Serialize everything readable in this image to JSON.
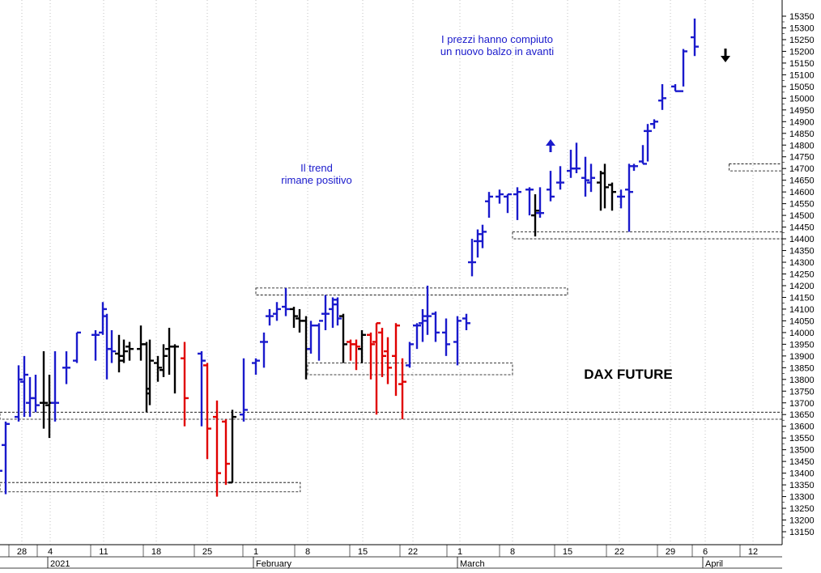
{
  "chart_data": {
    "type": "ohlc",
    "title": "DAX FUTURE",
    "y_unit": "index points",
    "ylim": [
      13100,
      15375
    ],
    "y_ticks": [
      13150,
      13200,
      13250,
      13300,
      13350,
      13400,
      13450,
      13500,
      13550,
      13600,
      13650,
      13700,
      13750,
      13800,
      13850,
      13900,
      13950,
      14000,
      14050,
      14100,
      14150,
      14200,
      14250,
      14300,
      14350,
      14400,
      14450,
      14500,
      14550,
      14600,
      14650,
      14700,
      14750,
      14800,
      14850,
      14900,
      14950,
      15000,
      15050,
      15100,
      15150,
      15200,
      15250,
      15300,
      15350
    ],
    "x_ticks": [
      {
        "label": "28",
        "date": "2020-12-28"
      },
      {
        "label": "4",
        "date": "2021-01-04"
      },
      {
        "label": "11",
        "date": "2021-01-11"
      },
      {
        "label": "18",
        "date": "2021-01-18"
      },
      {
        "label": "25",
        "date": "2021-01-25"
      },
      {
        "label": "1",
        "date": "2021-02-01"
      },
      {
        "label": "8",
        "date": "2021-02-08"
      },
      {
        "label": "15",
        "date": "2021-02-15"
      },
      {
        "label": "22",
        "date": "2021-02-22"
      },
      {
        "label": "1",
        "date": "2021-03-01"
      },
      {
        "label": "8",
        "date": "2021-03-08"
      },
      {
        "label": "15",
        "date": "2021-03-15"
      },
      {
        "label": "22",
        "date": "2021-03-22"
      },
      {
        "label": "29",
        "date": "2021-03-29"
      },
      {
        "label": "6",
        "date": "2021-04-06"
      },
      {
        "label": "12",
        "date": "2021-04-12"
      }
    ],
    "month_labels": [
      {
        "label": "2021",
        "date": "2021-01-04"
      },
      {
        "label": "February",
        "date": "2021-02-01"
      },
      {
        "label": "March",
        "date": "2021-03-01"
      },
      {
        "label": "April",
        "date": "2021-04-06"
      }
    ],
    "colors": {
      "up": "#1a1acc",
      "down": "#e00000",
      "neutral": "#000000"
    },
    "bars": [
      {
        "date": "2020-12-21",
        "open": 13400,
        "high": 13440,
        "low": 13340,
        "close": 13410,
        "color": "up"
      },
      {
        "date": "2020-12-22",
        "open": 13520,
        "high": 13620,
        "low": 13310,
        "close": 13610,
        "color": "up"
      },
      {
        "date": "2020-12-28",
        "open": 13640,
        "high": 13860,
        "low": 13620,
        "close": 13800,
        "color": "up"
      },
      {
        "date": "2020-12-29",
        "open": 13790,
        "high": 13900,
        "low": 13640,
        "close": 13820,
        "color": "up"
      },
      {
        "date": "2020-12-30",
        "open": 13700,
        "high": 13810,
        "low": 13640,
        "close": 13720,
        "color": "up"
      },
      {
        "date": "2020-12-31",
        "open": 13720,
        "high": 13820,
        "low": 13660,
        "close": 13690,
        "color": "up"
      },
      {
        "date": "2021-01-04",
        "open": 13700,
        "high": 13920,
        "low": 13590,
        "close": 13700,
        "color": "neutral"
      },
      {
        "date": "2021-01-05",
        "open": 13690,
        "high": 13820,
        "low": 13550,
        "close": 13700,
        "color": "neutral"
      },
      {
        "date": "2021-01-06",
        "open": 13700,
        "high": 13920,
        "low": 13620,
        "close": 13700,
        "color": "up"
      },
      {
        "date": "2021-01-07",
        "open": 13850,
        "high": 13920,
        "low": 13780,
        "close": 13850,
        "color": "up"
      },
      {
        "date": "2021-01-08",
        "open": 13880,
        "high": 14000,
        "low": 13870,
        "close": 14000,
        "color": "up"
      },
      {
        "date": "2021-01-11",
        "open": 13990,
        "high": 14010,
        "low": 13880,
        "close": 13990,
        "color": "up"
      },
      {
        "date": "2021-01-12",
        "open": 14000,
        "high": 14130,
        "low": 13990,
        "close": 14100,
        "color": "up"
      },
      {
        "date": "2021-01-13",
        "open": 14070,
        "high": 14080,
        "low": 13800,
        "close": 13930,
        "color": "up"
      },
      {
        "date": "2021-01-14",
        "open": 13930,
        "high": 14010,
        "low": 13870,
        "close": 13920,
        "color": "up"
      },
      {
        "date": "2021-01-15",
        "open": 13910,
        "high": 13990,
        "low": 13830,
        "close": 13900,
        "color": "neutral"
      },
      {
        "date": "2021-01-18",
        "open": 13880,
        "high": 13970,
        "low": 13870,
        "close": 13920,
        "color": "neutral"
      },
      {
        "date": "2021-01-19",
        "open": 13940,
        "high": 13960,
        "low": 13880,
        "close": 13930,
        "color": "neutral"
      },
      {
        "date": "2021-01-20",
        "open": 13930,
        "high": 14030,
        "low": 13880,
        "close": 13950,
        "color": "neutral"
      },
      {
        "date": "2021-01-21",
        "open": 13950,
        "high": 13960,
        "low": 13660,
        "close": 13740,
        "color": "neutral"
      },
      {
        "date": "2021-01-22",
        "open": 13760,
        "high": 13970,
        "low": 13690,
        "close": 13880,
        "color": "neutral"
      },
      {
        "date": "2021-01-25",
        "open": 13870,
        "high": 13900,
        "low": 13790,
        "close": 13850,
        "color": "neutral"
      },
      {
        "date": "2021-01-26",
        "open": 13840,
        "high": 13950,
        "low": 13810,
        "close": 13900,
        "color": "neutral"
      },
      {
        "date": "2021-01-27",
        "open": 13930,
        "high": 14020,
        "low": 13820,
        "close": 13940,
        "color": "neutral"
      },
      {
        "date": "2021-01-28",
        "open": 13940,
        "high": 13950,
        "low": 13740,
        "close": 13940,
        "color": "neutral"
      },
      {
        "date": "2021-01-29",
        "open": 13890,
        "high": 13960,
        "low": 13600,
        "close": 13720,
        "color": "down"
      },
      {
        "date": "2021-02-01",
        "open": 13910,
        "high": 13920,
        "low": 13600,
        "close": 13880,
        "color": "up"
      },
      {
        "date": "2021-02-02",
        "open": 13860,
        "high": 13870,
        "low": 13460,
        "close": 13590,
        "color": "down"
      },
      {
        "date": "2021-02-03",
        "open": 13640,
        "high": 13710,
        "low": 13300,
        "close": 13400,
        "color": "down"
      },
      {
        "date": "2021-02-04",
        "open": 13620,
        "high": 13630,
        "low": 13350,
        "close": 13440,
        "color": "down"
      },
      {
        "date": "2021-02-05",
        "open": 13360,
        "high": 13670,
        "low": 13360,
        "close": 13640,
        "color": "neutral"
      },
      {
        "date": "2021-02-08",
        "open": 13650,
        "high": 13890,
        "low": 13620,
        "close": 13670,
        "color": "up"
      },
      {
        "date": "2021-02-09",
        "open": 13870,
        "high": 13890,
        "low": 13820,
        "close": 13880,
        "color": "up"
      },
      {
        "date": "2021-02-10",
        "open": 13960,
        "high": 14000,
        "low": 13850,
        "close": 13960,
        "color": "up"
      },
      {
        "date": "2021-02-11",
        "open": 14070,
        "high": 14100,
        "low": 14030,
        "close": 14070,
        "color": "up"
      },
      {
        "date": "2021-02-12",
        "open": 14080,
        "high": 14130,
        "low": 14050,
        "close": 14100,
        "color": "up"
      },
      {
        "date": "2021-02-15",
        "open": 14110,
        "high": 14190,
        "low": 14070,
        "close": 14100,
        "color": "up"
      },
      {
        "date": "2021-02-16",
        "open": 14100,
        "high": 14110,
        "low": 14020,
        "close": 14070,
        "color": "neutral"
      },
      {
        "date": "2021-02-17",
        "open": 14060,
        "high": 14100,
        "low": 14000,
        "close": 14050,
        "color": "neutral"
      },
      {
        "date": "2021-02-18",
        "open": 14050,
        "high": 14070,
        "low": 13800,
        "close": 13930,
        "color": "neutral"
      },
      {
        "date": "2021-02-19",
        "open": 13930,
        "high": 14050,
        "low": 13910,
        "close": 14030,
        "color": "up"
      },
      {
        "date": "2021-02-22",
        "open": 14030,
        "high": 14040,
        "low": 13880,
        "close": 14050,
        "color": "up"
      },
      {
        "date": "2021-02-23",
        "open": 14080,
        "high": 14160,
        "low": 14010,
        "close": 14080,
        "color": "up"
      },
      {
        "date": "2021-02-24",
        "open": 14100,
        "high": 14150,
        "low": 14020,
        "close": 14120,
        "color": "up"
      },
      {
        "date": "2021-02-25",
        "open": 14140,
        "high": 14150,
        "low": 14030,
        "close": 14060,
        "color": "up"
      },
      {
        "date": "2021-02-26",
        "open": 14070,
        "high": 14080,
        "low": 13870,
        "close": 13950,
        "color": "neutral"
      },
      {
        "date": "2021-03-01",
        "open": 13960,
        "high": 13970,
        "low": 13880,
        "close": 13950,
        "color": "down"
      },
      {
        "date": "2021-03-02",
        "open": 13950,
        "high": 13970,
        "low": 13840,
        "close": 13940,
        "color": "down"
      },
      {
        "date": "2021-03-03",
        "open": 13930,
        "high": 14010,
        "low": 13870,
        "close": 13990,
        "color": "neutral"
      },
      {
        "date": "2021-03-04",
        "open": 13990,
        "high": 14000,
        "low": 13800,
        "close": 13950,
        "color": "down"
      },
      {
        "date": "2021-03-05",
        "open": 13960,
        "high": 14040,
        "low": 13650,
        "close": 14040,
        "color": "down"
      },
      {
        "date": "2021-03-08",
        "open": 14000,
        "high": 14020,
        "low": 13810,
        "close": 13900,
        "color": "down"
      },
      {
        "date": "2021-03-09",
        "open": 13920,
        "high": 13980,
        "low": 13780,
        "close": 13850,
        "color": "down"
      },
      {
        "date": "2021-03-10",
        "open": 13900,
        "high": 14040,
        "low": 13730,
        "close": 14030,
        "color": "down"
      },
      {
        "date": "2021-03-11",
        "open": 13780,
        "high": 13890,
        "low": 13630,
        "close": 13790,
        "color": "down"
      },
      {
        "date": "2021-03-12",
        "open": 13860,
        "high": 13960,
        "low": 13850,
        "close": 13950,
        "color": "up"
      },
      {
        "date": "2021-03-15",
        "open": 14030,
        "high": 14040,
        "low": 13930,
        "close": 14030,
        "color": "up"
      },
      {
        "date": "2021-03-16",
        "open": 14040,
        "high": 14100,
        "low": 13960,
        "close": 14050,
        "color": "up"
      },
      {
        "date": "2021-03-17",
        "open": 14070,
        "high": 14200,
        "low": 13990,
        "close": 14070,
        "color": "up"
      },
      {
        "date": "2021-03-18",
        "open": 14080,
        "high": 14090,
        "low": 13960,
        "close": 14000,
        "color": "up"
      },
      {
        "date": "2021-03-19",
        "open": 14000,
        "high": 14060,
        "low": 13900,
        "close": 13950,
        "color": "up"
      },
      {
        "date": "2021-03-22",
        "open": 13960,
        "high": 14070,
        "low": 13860,
        "close": 14050,
        "color": "up"
      },
      {
        "date": "2021-03-23",
        "open": 14060,
        "high": 14080,
        "low": 14010,
        "close": 14040,
        "color": "up"
      },
      {
        "date": "2021-03-24",
        "open": 14300,
        "high": 14400,
        "low": 14240,
        "close": 14300,
        "color": "up"
      },
      {
        "date": "2021-03-25",
        "open": 14390,
        "high": 14440,
        "low": 14320,
        "close": 14390,
        "color": "up"
      },
      {
        "date": "2021-03-26",
        "open": 14420,
        "high": 14460,
        "low": 14360,
        "close": 14430,
        "color": "up"
      },
      {
        "date": "2021-03-29",
        "open": 14560,
        "high": 14600,
        "low": 14490,
        "close": 14580,
        "color": "up"
      },
      {
        "date": "2021-03-30",
        "open": 14580,
        "high": 14610,
        "low": 14550,
        "close": 14590,
        "color": "up"
      },
      {
        "date": "2021-03-31",
        "open": 14580,
        "high": 14590,
        "low": 14510,
        "close": 14590,
        "color": "up"
      },
      {
        "date": "2021-04-01",
        "open": 14590,
        "high": 14620,
        "low": 14480,
        "close": 14600,
        "color": "up"
      },
      {
        "date": "2021-04-02",
        "open": 14610,
        "high": 14620,
        "low": 14500,
        "close": 14610,
        "color": "up"
      },
      {
        "date": "2021-04-05",
        "open": 14500,
        "high": 14590,
        "low": 14410,
        "close": 14520,
        "color": "neutral"
      },
      {
        "date": "2021-04-06",
        "open": 14510,
        "high": 14620,
        "low": 14490,
        "close": 14510,
        "color": "up"
      },
      {
        "date": "2021-04-07",
        "open": 14610,
        "high": 14690,
        "low": 14560,
        "close": 14580,
        "color": "up"
      },
      {
        "date": "2021-04-08",
        "open": 14640,
        "high": 14710,
        "low": 14610,
        "close": 14640,
        "color": "up"
      },
      {
        "date": "2021-04-09",
        "open": 14690,
        "high": 14780,
        "low": 14660,
        "close": 14700,
        "color": "up"
      },
      {
        "date": "2021-04-12",
        "open": 14700,
        "high": 14810,
        "low": 14680,
        "close": 14700,
        "color": "up"
      },
      {
        "date": "2021-04-13",
        "open": 14660,
        "high": 14750,
        "low": 14580,
        "close": 14650,
        "color": "up"
      },
      {
        "date": "2021-04-14",
        "open": 14640,
        "high": 14720,
        "low": 14600,
        "close": 14660,
        "color": "up"
      },
      {
        "date": "2021-04-15",
        "open": 14640,
        "high": 14690,
        "low": 14520,
        "close": 14680,
        "color": "neutral"
      },
      {
        "date": "2021-04-16",
        "open": 14680,
        "high": 14720,
        "low": 14530,
        "close": 14620,
        "color": "neutral"
      },
      {
        "date": "2021-04-19",
        "open": 14630,
        "high": 14640,
        "low": 14520,
        "close": 14600,
        "color": "neutral"
      },
      {
        "date": "2021-04-20",
        "open": 14580,
        "high": 14610,
        "low": 14530,
        "close": 14580,
        "color": "up"
      },
      {
        "date": "2021-04-21",
        "open": 14610,
        "high": 14720,
        "low": 14430,
        "close": 14600,
        "color": "up"
      },
      {
        "date": "2021-04-22",
        "open": 14710,
        "high": 14720,
        "low": 14690,
        "close": 14710,
        "color": "up"
      },
      {
        "date": "2021-04-23",
        "open": 14730,
        "high": 14800,
        "low": 14720,
        "close": 14720,
        "color": "up"
      },
      {
        "date": "2021-04-26",
        "open": 14860,
        "high": 14890,
        "low": 14730,
        "close": 14860,
        "color": "up"
      },
      {
        "date": "2021-04-27",
        "open": 14890,
        "high": 14910,
        "low": 14870,
        "close": 14900,
        "color": "up"
      },
      {
        "date": "2021-04-28",
        "open": 14990,
        "high": 15060,
        "low": 14950,
        "close": 15000,
        "color": "up"
      },
      {
        "date": "2021-04-29",
        "open": 15050,
        "high": 15060,
        "low": 15030,
        "close": 15030,
        "color": "up"
      },
      {
        "date": "2021-04-30",
        "open": 15030,
        "high": 15210,
        "low": 15050,
        "close": 15200,
        "color": "up"
      },
      {
        "date": "2021-05-03",
        "open": 15260,
        "high": 15340,
        "low": 15180,
        "close": 15220,
        "color": "up"
      }
    ],
    "zones": [
      {
        "from": "2020-12-21",
        "to": "2021-02-07",
        "low": 13320,
        "high": 13360
      },
      {
        "from": "2020-12-21",
        "to": "2021-05-31",
        "low": 13630,
        "high": 13660
      },
      {
        "from": "2021-02-08",
        "to": "2021-03-08",
        "low": 13820,
        "high": 13870
      },
      {
        "from": "2021-02-01",
        "to": "2021-03-15",
        "low": 14160,
        "high": 14190
      },
      {
        "from": "2021-03-08",
        "to": "2021-04-23",
        "low": 14400,
        "high": 14430
      },
      {
        "from": "2021-04-09",
        "to": "2021-04-23",
        "low": 14690,
        "high": 14720
      },
      {
        "from": "2021-05-02",
        "to": "2021-05-03",
        "low": 15350,
        "high": 15350
      }
    ],
    "annotations": [
      {
        "lines": [
          "Il trend",
          "rimane positivo"
        ],
        "date": "2021-02-15",
        "value": 14675
      },
      {
        "lines": [
          "I prezzi hanno compiuto",
          "un nuovo balzo in avanti"
        ],
        "date": "2021-03-19",
        "value": 15270
      }
    ],
    "arrows": [
      {
        "direction": "up",
        "date": "2021-03-22",
        "value": 14790
      },
      {
        "direction": "down",
        "date": "2021-05-10",
        "value": 15200
      }
    ]
  }
}
